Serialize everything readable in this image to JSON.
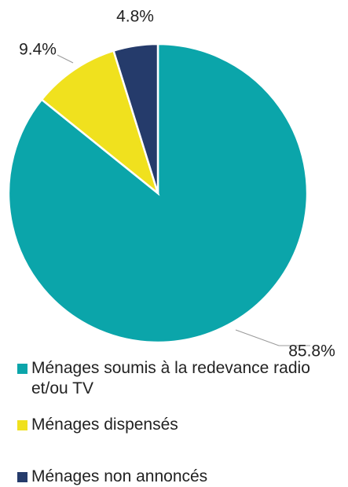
{
  "chart_data": {
    "type": "pie",
    "series": [
      {
        "name": "Ménages soumis à la redevance radio et/ou TV",
        "color": "#0ba5aa",
        "values": [
          85.8
        ],
        "value_labels": [
          "85.8%"
        ]
      },
      {
        "name": "Ménages dispensés",
        "color": "#f0e11e",
        "values": [
          9.4
        ],
        "value_labels": [
          "9.4%"
        ]
      },
      {
        "name": "Ménages non annoncés",
        "color": "#253b6b",
        "values": [
          4.8
        ],
        "value_labels": [
          "4.8%"
        ]
      }
    ]
  }
}
